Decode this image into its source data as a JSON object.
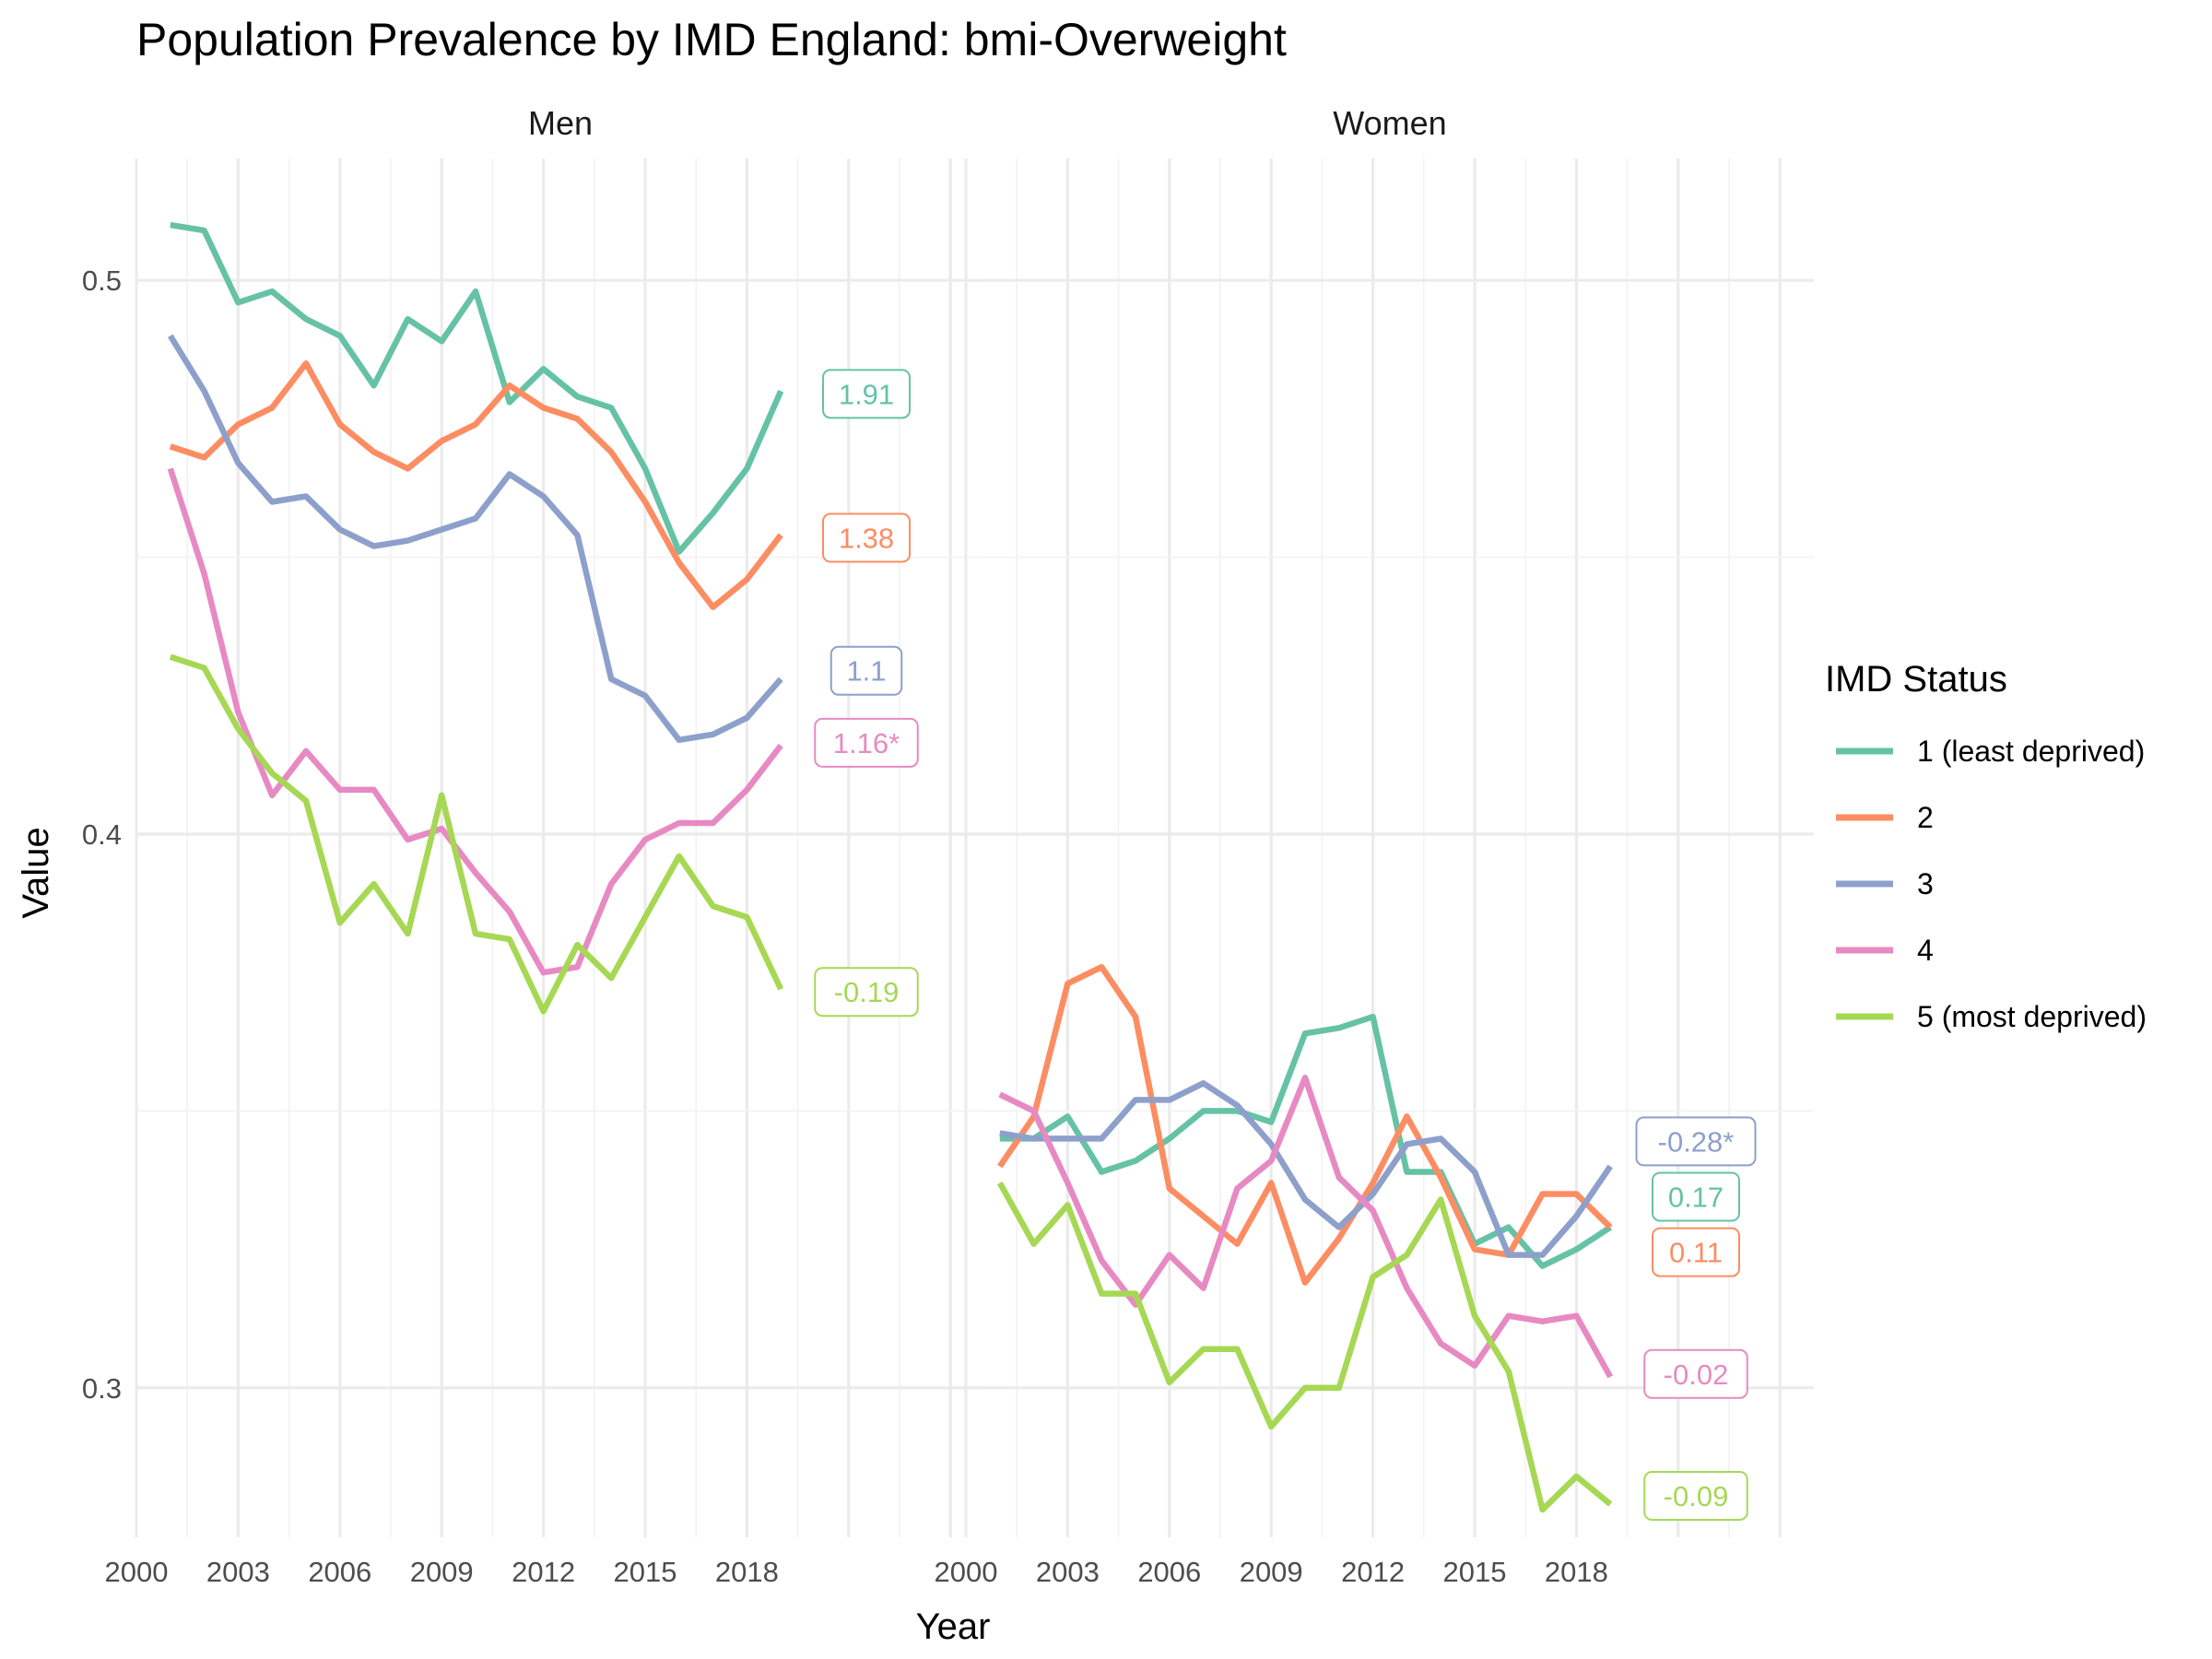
{
  "chart_data": {
    "type": "line",
    "title": "Population Prevalence by IMD England: bmi-Overweight",
    "xlabel": "Year",
    "ylabel": "Value",
    "xlim": [
      2000,
      2025
    ],
    "ylim": [
      0.273,
      0.522
    ],
    "x_ticks": [
      2000,
      2003,
      2006,
      2009,
      2012,
      2015,
      2018
    ],
    "y_ticks": [
      0.3,
      0.4,
      0.5
    ],
    "grid": true,
    "legend": {
      "title": "IMD Status",
      "position": "right",
      "entries": [
        "1 (least deprived)",
        "2",
        "3",
        "4",
        "5 (most deprived)"
      ]
    },
    "colors": [
      "#66c2a5",
      "#fc8d62",
      "#8da0cb",
      "#e78ac3",
      "#a6d854"
    ],
    "x": [
      2001,
      2002,
      2003,
      2004,
      2005,
      2006,
      2007,
      2008,
      2009,
      2010,
      2011,
      2012,
      2013,
      2014,
      2015,
      2016,
      2017,
      2018,
      2019
    ],
    "panels": [
      {
        "label": "Men",
        "series": [
          {
            "name": "1 (least deprived)",
            "values": [
              0.51,
              0.509,
              0.496,
              0.498,
              0.493,
              0.49,
              0.481,
              0.493,
              0.489,
              0.498,
              0.478,
              0.484,
              0.479,
              0.477,
              0.466,
              0.451,
              0.458,
              0.466,
              0.48
            ],
            "end_label": "1.91",
            "end_label_value": 0.4795
          },
          {
            "name": "2",
            "values": [
              0.47,
              0.468,
              0.474,
              0.477,
              0.485,
              0.474,
              0.469,
              0.466,
              0.471,
              0.474,
              0.481,
              0.477,
              0.475,
              0.469,
              0.46,
              0.449,
              0.441,
              0.446,
              0.454
            ],
            "end_label": "1.38",
            "end_label_value": 0.4535
          },
          {
            "name": "3",
            "values": [
              0.49,
              0.48,
              0.467,
              0.46,
              0.461,
              0.455,
              0.452,
              0.453,
              0.455,
              0.457,
              0.465,
              0.461,
              0.454,
              0.428,
              0.425,
              0.417,
              0.418,
              0.421,
              0.428
            ],
            "end_label": "1.1",
            "end_label_value": 0.4295
          },
          {
            "name": "4",
            "values": [
              0.466,
              0.447,
              0.422,
              0.407,
              0.415,
              0.408,
              0.408,
              0.399,
              0.401,
              0.393,
              0.386,
              0.375,
              0.376,
              0.391,
              0.399,
              0.402,
              0.402,
              0.408,
              0.416
            ],
            "end_label": "1.16*",
            "end_label_value": 0.4165
          },
          {
            "name": "5 (most deprived)",
            "values": [
              0.432,
              0.43,
              0.419,
              0.411,
              0.406,
              0.384,
              0.391,
              0.382,
              0.407,
              0.382,
              0.381,
              0.368,
              0.38,
              0.374,
              0.385,
              0.396,
              0.387,
              0.385,
              0.372
            ],
            "end_label": "-0.19",
            "end_label_value": 0.3715
          }
        ]
      },
      {
        "label": "Women",
        "series": [
          {
            "name": "1 (least deprived)",
            "values": [
              0.345,
              0.345,
              0.349,
              0.339,
              0.341,
              0.345,
              0.35,
              0.35,
              0.348,
              0.364,
              0.365,
              0.367,
              0.339,
              0.339,
              0.326,
              0.329,
              0.322,
              0.325,
              0.329
            ],
            "end_label": "0.17",
            "end_label_value": 0.3345
          },
          {
            "name": "2",
            "values": [
              0.34,
              0.349,
              0.373,
              0.376,
              0.367,
              0.336,
              0.331,
              0.326,
              0.337,
              0.319,
              0.327,
              0.337,
              0.349,
              0.338,
              0.325,
              0.324,
              0.335,
              0.335,
              0.329
            ],
            "end_label": "0.11",
            "end_label_value": 0.3245
          },
          {
            "name": "3",
            "values": [
              0.346,
              0.345,
              0.345,
              0.345,
              0.352,
              0.352,
              0.355,
              0.351,
              0.344,
              0.334,
              0.329,
              0.335,
              0.344,
              0.345,
              0.339,
              0.324,
              0.324,
              0.331,
              0.34
            ],
            "end_label": "-0.28*",
            "end_label_value": 0.3445
          },
          {
            "name": "4",
            "values": [
              0.353,
              0.35,
              0.337,
              0.323,
              0.315,
              0.324,
              0.318,
              0.336,
              0.341,
              0.356,
              0.338,
              0.332,
              0.318,
              0.308,
              0.304,
              0.313,
              0.312,
              0.313,
              0.302
            ],
            "end_label": "-0.02",
            "end_label_value": 0.3025
          },
          {
            "name": "5 (most deprived)",
            "values": [
              0.337,
              0.326,
              0.333,
              0.317,
              0.317,
              0.301,
              0.307,
              0.307,
              0.293,
              0.3,
              0.3,
              0.32,
              0.324,
              0.334,
              0.313,
              0.303,
              0.278,
              0.284,
              0.279
            ],
            "end_label": "-0.09",
            "end_label_value": 0.2805
          }
        ]
      }
    ]
  }
}
